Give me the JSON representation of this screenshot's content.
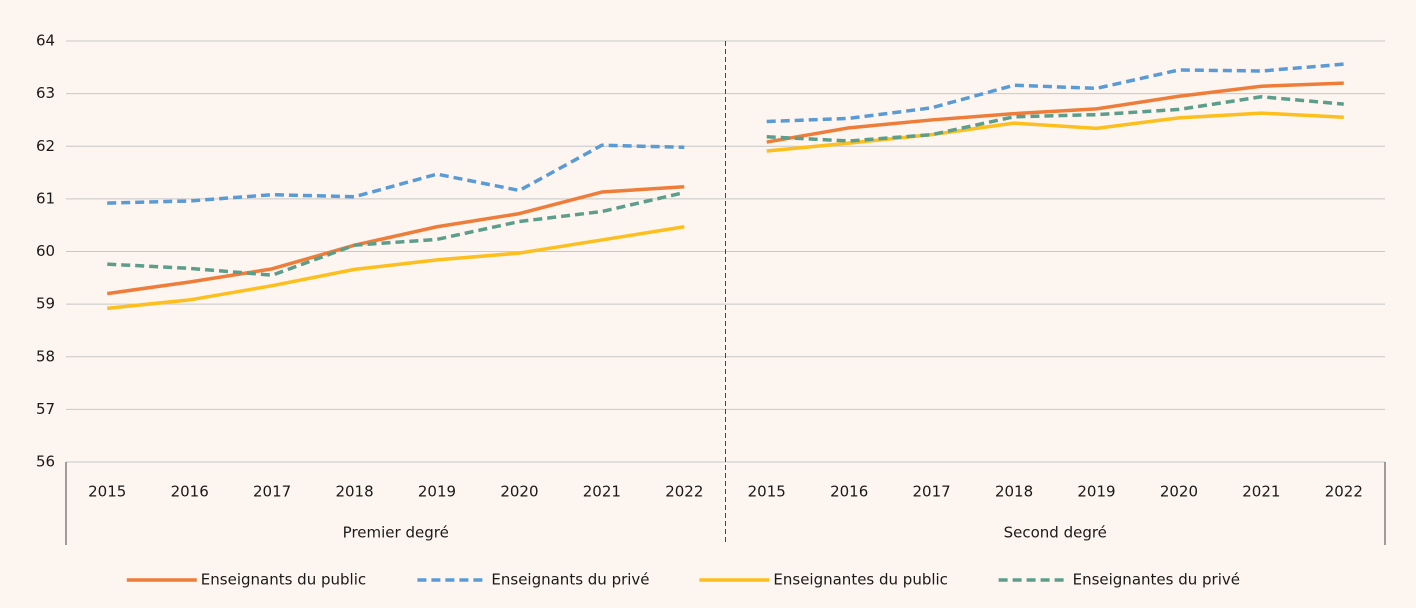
{
  "chart_data": {
    "type": "line",
    "groups": [
      {
        "name": "Premier degré",
        "categories": [
          "2015",
          "2016",
          "2017",
          "2018",
          "2019",
          "2020",
          "2021",
          "2022"
        ]
      },
      {
        "name": "Second degré",
        "categories": [
          "2015",
          "2016",
          "2017",
          "2018",
          "2019",
          "2020",
          "2021",
          "2022"
        ]
      }
    ],
    "series": [
      {
        "name": "Enseignants du public",
        "color": "#ee7d3a",
        "dashed": false,
        "values": [
          [
            59.2,
            59.42,
            59.67,
            60.12,
            60.47,
            60.72,
            61.13,
            61.23
          ],
          [
            62.08,
            62.35,
            62.5,
            62.62,
            62.71,
            62.95,
            63.14,
            63.2
          ]
        ]
      },
      {
        "name": "Enseignants du privé",
        "color": "#5b9bd5",
        "dashed": true,
        "values": [
          [
            60.92,
            60.96,
            61.08,
            61.04,
            61.47,
            61.16,
            62.02,
            61.98
          ],
          [
            62.47,
            62.53,
            62.73,
            63.16,
            63.1,
            63.45,
            63.43,
            63.56
          ]
        ]
      },
      {
        "name": "Enseignantes du public",
        "color": "#fcbf1e",
        "dashed": false,
        "values": [
          [
            58.92,
            59.08,
            59.35,
            59.66,
            59.84,
            59.97,
            60.22,
            60.47
          ],
          [
            61.91,
            62.06,
            62.22,
            62.44,
            62.34,
            62.54,
            62.63,
            62.55
          ]
        ]
      },
      {
        "name": "Enseignantes du privé",
        "color": "#5c9e8b",
        "dashed": true,
        "values": [
          [
            59.76,
            59.68,
            59.55,
            60.12,
            60.23,
            60.57,
            60.76,
            61.12
          ],
          [
            62.18,
            62.1,
            62.22,
            62.56,
            62.6,
            62.7,
            62.94,
            62.8
          ]
        ]
      }
    ],
    "ylim": [
      56,
      64
    ],
    "yticks": [
      56,
      57,
      58,
      59,
      60,
      61,
      62,
      63,
      64
    ],
    "grid": true,
    "legend": "bottom"
  }
}
